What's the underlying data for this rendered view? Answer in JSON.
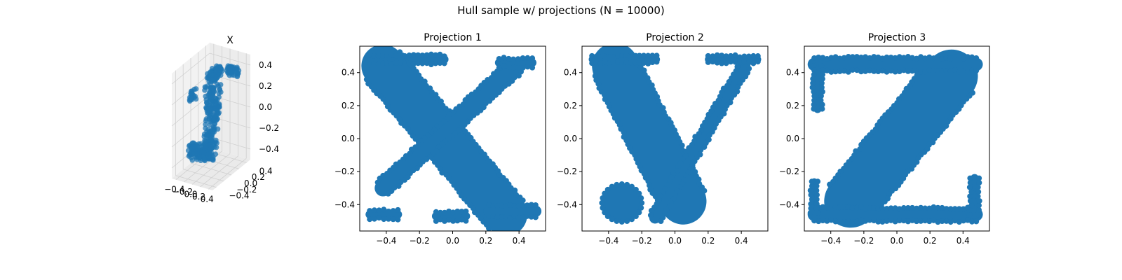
{
  "figure": {
    "suptitle": "Hull sample w/ projections (N = 10000)",
    "point_color": "#1f77b4"
  },
  "chart_data": [
    {
      "type": "scatter",
      "projection": "3d",
      "title": "X",
      "description_of_shape": "3D point cloud; its three axis-aligned projections form the letters x, y, z",
      "x_ticks": [
        "−0.4",
        "−0.2",
        "0.0",
        "0.2",
        "0.4"
      ],
      "y_ticks": [
        "−0.4",
        "−0.2",
        "0.0",
        "0.2",
        "0.4"
      ],
      "z_ticks": [
        "−0.4",
        "−0.2",
        "0.0",
        "0.2",
        "0.4"
      ],
      "xlim": [
        -0.5,
        0.5
      ],
      "ylim": [
        -0.5,
        0.5
      ],
      "zlim": [
        -0.5,
        0.5
      ],
      "grid": true
    },
    {
      "type": "scatter",
      "title": "Projection 1",
      "letter": "x",
      "xlim": [
        -0.56,
        0.56
      ],
      "ylim": [
        -0.56,
        0.56
      ],
      "x_ticks": [
        "−0.4",
        "−0.2",
        "0.0",
        "0.2",
        "0.4"
      ],
      "y_ticks": [
        "−0.4",
        "−0.2",
        "0.0",
        "0.2",
        "0.4"
      ],
      "strokes": [
        {
          "from": [
            -0.42,
            0.44
          ],
          "to": [
            0.32,
            -0.46
          ],
          "width": 0.26
        },
        {
          "from": [
            0.38,
            0.44
          ],
          "to": [
            -0.42,
            -0.3
          ],
          "width": 0.1
        },
        {
          "from": [
            -0.5,
            0.48
          ],
          "to": [
            -0.05,
            0.48
          ],
          "width": 0.05
        },
        {
          "from": [
            0.28,
            0.46
          ],
          "to": [
            0.48,
            0.46
          ],
          "width": 0.05
        },
        {
          "from": [
            -0.5,
            -0.46
          ],
          "to": [
            -0.33,
            -0.46
          ],
          "width": 0.05
        },
        {
          "from": [
            -0.1,
            -0.47
          ],
          "to": [
            0.08,
            -0.47
          ],
          "width": 0.05
        },
        {
          "from": [
            0.22,
            -0.44
          ],
          "to": [
            0.5,
            -0.44
          ],
          "width": 0.07
        }
      ]
    },
    {
      "type": "scatter",
      "title": "Projection 2",
      "letter": "y",
      "xlim": [
        -0.56,
        0.56
      ],
      "ylim": [
        -0.56,
        0.56
      ],
      "x_ticks": [
        "−0.4",
        "−0.2",
        "0.0",
        "0.2",
        "0.4"
      ],
      "y_ticks": [
        "−0.4",
        "−0.2",
        "0.0",
        "0.2",
        "0.4"
      ],
      "strokes": [
        {
          "from": [
            -0.36,
            0.44
          ],
          "to": [
            0.05,
            -0.38
          ],
          "width": 0.28
        },
        {
          "from": [
            0.42,
            0.44
          ],
          "to": [
            -0.12,
            -0.48
          ],
          "width": 0.07
        },
        {
          "from": [
            -0.5,
            0.48
          ],
          "to": [
            -0.11,
            0.48
          ],
          "width": 0.04
        },
        {
          "from": [
            0.2,
            0.48
          ],
          "to": [
            0.5,
            0.48
          ],
          "width": 0.04
        }
      ],
      "blob": {
        "center": [
          -0.32,
          -0.39
        ],
        "r": 0.12
      }
    },
    {
      "type": "scatter",
      "title": "Projection 3",
      "letter": "z",
      "xlim": [
        -0.56,
        0.56
      ],
      "ylim": [
        -0.56,
        0.56
      ],
      "x_ticks": [
        "−0.4",
        "−0.2",
        "0.0",
        "0.2",
        "0.4"
      ],
      "y_ticks": [
        "−0.4",
        "−0.2",
        "0.0",
        "0.2",
        "0.4"
      ],
      "strokes": [
        {
          "from": [
            0.33,
            0.38
          ],
          "to": [
            -0.28,
            -0.38
          ],
          "width": 0.32
        },
        {
          "from": [
            -0.5,
            0.45
          ],
          "to": [
            0.48,
            0.45
          ],
          "width": 0.08
        },
        {
          "from": [
            -0.48,
            0.44
          ],
          "to": [
            -0.48,
            0.18
          ],
          "width": 0.05
        },
        {
          "from": [
            -0.5,
            -0.46
          ],
          "to": [
            0.48,
            -0.46
          ],
          "width": 0.08
        },
        {
          "from": [
            0.47,
            -0.46
          ],
          "to": [
            0.47,
            -0.24
          ],
          "width": 0.05
        },
        {
          "from": [
            -0.5,
            -0.45
          ],
          "to": [
            -0.5,
            -0.26
          ],
          "width": 0.04
        }
      ]
    }
  ]
}
